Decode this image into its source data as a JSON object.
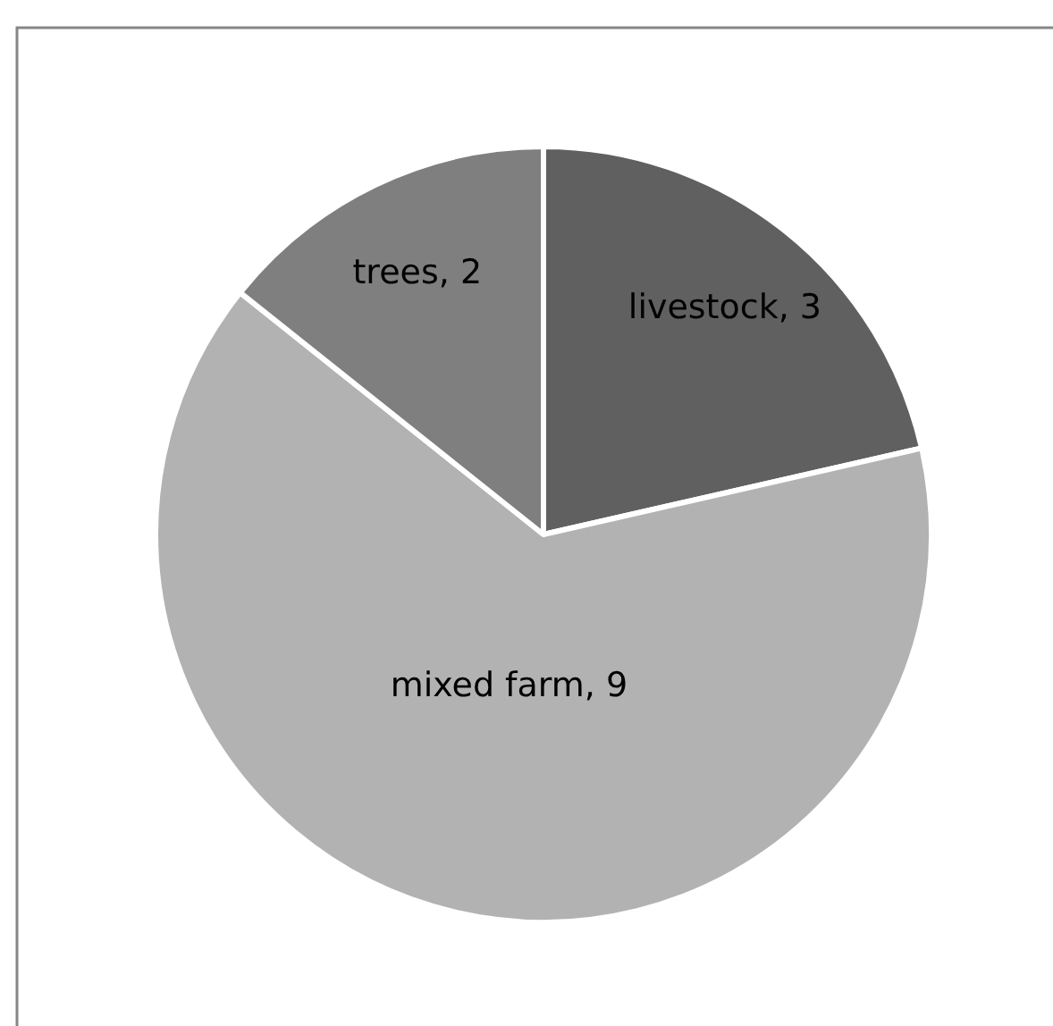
{
  "chart_data": {
    "type": "pie",
    "categories": [
      "livestock",
      "mixed farm",
      "trees"
    ],
    "values": [
      3,
      9,
      2
    ],
    "value_labels": [
      ", 3",
      ", 9",
      ", 2"
    ],
    "colors": [
      "#606060",
      "#b2b2b2",
      "#7f7f7f"
    ]
  }
}
